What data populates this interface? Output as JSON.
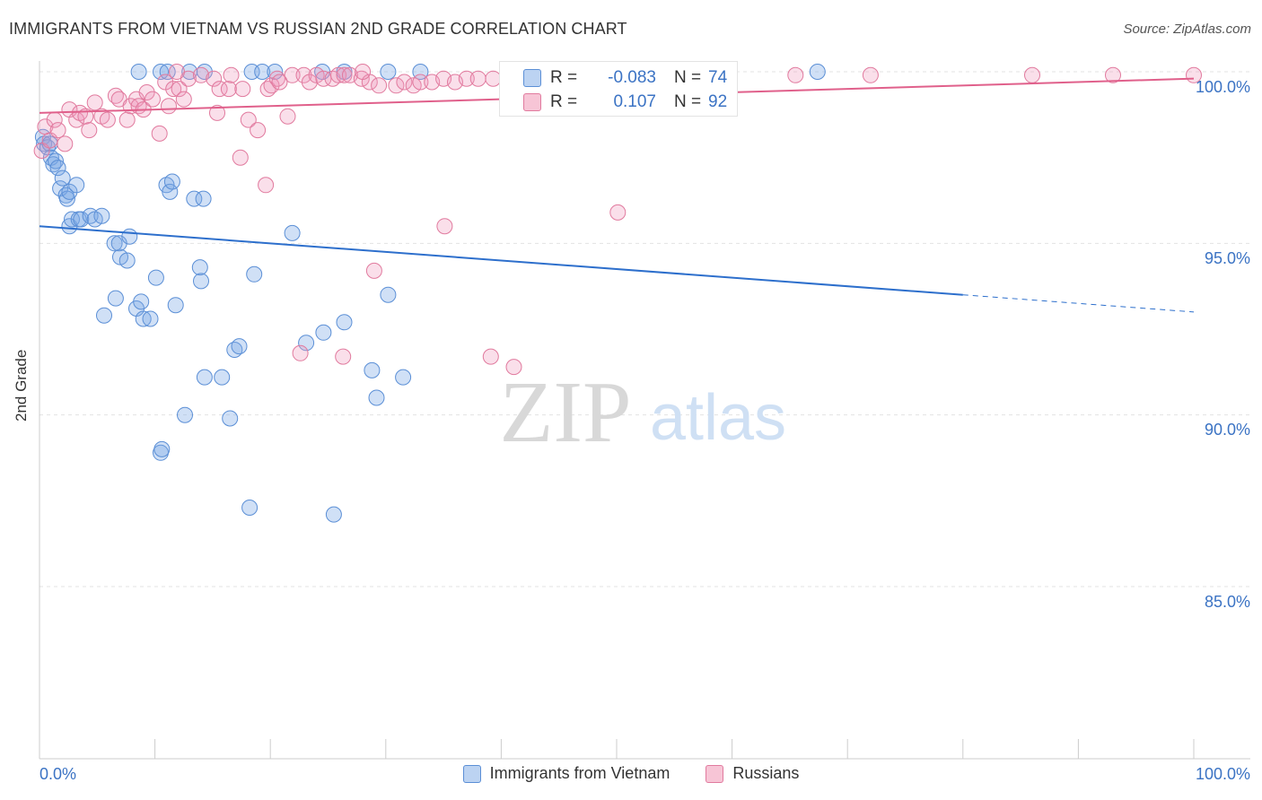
{
  "header": {
    "title": "IMMIGRANTS FROM VIETNAM VS RUSSIAN 2ND GRADE CORRELATION CHART",
    "source": "Source: ZipAtlas.com"
  },
  "watermark": {
    "zip": "ZIP",
    "atlas": "atlas"
  },
  "stats": [
    {
      "r_label": "R =",
      "r_value": "-0.083",
      "n_label": "N =",
      "n_value": "74",
      "color": "#5b8fd6",
      "fill": "#bcd3f2"
    },
    {
      "r_label": "R =",
      "r_value": "0.107",
      "n_label": "N =",
      "n_value": "92",
      "color": "#e17a9e",
      "fill": "#f7c5d6"
    }
  ],
  "legend": [
    {
      "label": "Immigrants from Vietnam",
      "color": "#5b8fd6",
      "fill": "#bcd3f2"
    },
    {
      "label": "Russians",
      "color": "#e17a9e",
      "fill": "#f7c5d6"
    }
  ],
  "colors": {
    "value_text": "#3b73c4",
    "blue_line": "#2d6fcc",
    "pink_line": "#e0608b",
    "grid": "#e3e3e3",
    "axis": "#cccccc"
  },
  "chart_data": {
    "type": "scatter",
    "title": "IMMIGRANTS FROM VIETNAM VS RUSSIAN 2ND GRADE CORRELATION CHART",
    "xlabel": "",
    "ylabel": "2nd Grade",
    "xlim": [
      0,
      100
    ],
    "ylim": [
      80.5,
      100.5
    ],
    "x_tick_labels": [
      "0.0%",
      "100.0%"
    ],
    "y_ticks": [
      85,
      90,
      95,
      100
    ],
    "y_tick_labels": [
      "85.0%",
      "90.0%",
      "95.0%",
      "100.0%"
    ],
    "grid": true,
    "legend_position": "bottom",
    "series": [
      {
        "name": "Immigrants from Vietnam",
        "color": "#5b8fd6",
        "trend": {
          "x0": 0,
          "y0": 95.5,
          "x1": 80,
          "y1": 93.5,
          "dashed_to_x": 100,
          "dashed_to_y": 93.0
        },
        "points": [
          [
            0.3,
            98.1
          ],
          [
            0.4,
            97.9
          ],
          [
            0.7,
            97.8
          ],
          [
            0.9,
            97.9
          ],
          [
            1.0,
            97.5
          ],
          [
            1.2,
            97.3
          ],
          [
            1.4,
            97.4
          ],
          [
            1.6,
            97.2
          ],
          [
            1.8,
            96.6
          ],
          [
            2.0,
            96.9
          ],
          [
            2.3,
            96.4
          ],
          [
            2.4,
            96.3
          ],
          [
            2.6,
            96.5
          ],
          [
            3.2,
            96.7
          ],
          [
            2.6,
            95.5
          ],
          [
            2.8,
            95.7
          ],
          [
            3.4,
            95.7
          ],
          [
            3.6,
            95.7
          ],
          [
            4.4,
            95.8
          ],
          [
            4.8,
            95.7
          ],
          [
            5.4,
            95.8
          ],
          [
            6.5,
            95.0
          ],
          [
            7.0,
            94.6
          ],
          [
            6.9,
            95.0
          ],
          [
            7.6,
            94.5
          ],
          [
            7.8,
            95.2
          ],
          [
            6.6,
            93.4
          ],
          [
            8.4,
            93.1
          ],
          [
            9.0,
            92.8
          ],
          [
            9.6,
            92.8
          ],
          [
            5.6,
            92.9
          ],
          [
            10.1,
            94.0
          ],
          [
            11.0,
            96.7
          ],
          [
            11.3,
            96.5
          ],
          [
            11.5,
            96.8
          ],
          [
            13.4,
            96.3
          ],
          [
            14.2,
            96.3
          ],
          [
            11.8,
            93.2
          ],
          [
            13.9,
            94.3
          ],
          [
            14.0,
            93.9
          ],
          [
            14.3,
            91.1
          ],
          [
            15.8,
            91.1
          ],
          [
            16.9,
            91.9
          ],
          [
            17.3,
            92.0
          ],
          [
            18.6,
            94.1
          ],
          [
            21.9,
            95.3
          ],
          [
            23.1,
            92.1
          ],
          [
            24.6,
            92.4
          ],
          [
            26.4,
            92.7
          ],
          [
            30.2,
            93.5
          ],
          [
            28.8,
            91.3
          ],
          [
            29.2,
            90.5
          ],
          [
            31.5,
            91.1
          ],
          [
            12.6,
            90.0
          ],
          [
            16.5,
            89.9
          ],
          [
            10.5,
            88.9
          ],
          [
            10.6,
            89.0
          ],
          [
            18.2,
            87.3
          ],
          [
            25.5,
            87.1
          ],
          [
            8.8,
            93.3
          ],
          [
            8.6,
            100.0
          ],
          [
            10.5,
            100.0
          ],
          [
            11.1,
            100.0
          ],
          [
            13.0,
            100.0
          ],
          [
            14.3,
            100.0
          ],
          [
            18.4,
            100.0
          ],
          [
            19.3,
            100.0
          ],
          [
            20.4,
            100.0
          ],
          [
            24.5,
            100.0
          ],
          [
            26.4,
            100.0
          ],
          [
            30.2,
            100.0
          ],
          [
            33.0,
            100.0
          ],
          [
            43.1,
            100.0
          ],
          [
            67.4,
            100.0
          ]
        ]
      },
      {
        "name": "Russians",
        "color": "#e17a9e",
        "trend": {
          "x0": 0,
          "y0": 98.8,
          "x1": 100,
          "y1": 99.8
        },
        "points": [
          [
            0.2,
            97.7
          ],
          [
            0.5,
            98.4
          ],
          [
            0.9,
            98.0
          ],
          [
            1.3,
            98.6
          ],
          [
            1.6,
            98.3
          ],
          [
            2.2,
            97.9
          ],
          [
            2.6,
            98.9
          ],
          [
            3.2,
            98.6
          ],
          [
            3.5,
            98.8
          ],
          [
            4.0,
            98.7
          ],
          [
            4.3,
            98.3
          ],
          [
            4.8,
            99.1
          ],
          [
            5.4,
            98.7
          ],
          [
            5.9,
            98.6
          ],
          [
            6.6,
            99.3
          ],
          [
            6.9,
            99.2
          ],
          [
            7.6,
            98.6
          ],
          [
            7.9,
            99.0
          ],
          [
            8.4,
            99.2
          ],
          [
            8.6,
            99.0
          ],
          [
            9.0,
            98.9
          ],
          [
            9.3,
            99.4
          ],
          [
            9.8,
            99.2
          ],
          [
            10.4,
            98.2
          ],
          [
            10.9,
            99.7
          ],
          [
            11.2,
            99.0
          ],
          [
            11.6,
            99.5
          ],
          [
            12.1,
            99.5
          ],
          [
            12.5,
            99.2
          ],
          [
            12.9,
            99.8
          ],
          [
            14.0,
            99.9
          ],
          [
            15.1,
            99.8
          ],
          [
            15.4,
            98.8
          ],
          [
            15.6,
            99.5
          ],
          [
            16.4,
            99.5
          ],
          [
            16.6,
            99.9
          ],
          [
            17.6,
            99.5
          ],
          [
            18.1,
            98.6
          ],
          [
            18.9,
            98.3
          ],
          [
            19.8,
            99.5
          ],
          [
            20.1,
            99.6
          ],
          [
            20.6,
            99.8
          ],
          [
            21.5,
            98.7
          ],
          [
            21.9,
            99.9
          ],
          [
            22.9,
            99.9
          ],
          [
            23.4,
            99.7
          ],
          [
            24.0,
            99.9
          ],
          [
            24.6,
            99.8
          ],
          [
            25.4,
            99.8
          ],
          [
            25.9,
            99.9
          ],
          [
            26.4,
            99.9
          ],
          [
            26.9,
            99.9
          ],
          [
            27.9,
            99.8
          ],
          [
            28.6,
            99.7
          ],
          [
            29.4,
            99.6
          ],
          [
            30.9,
            99.6
          ],
          [
            31.6,
            99.7
          ],
          [
            32.4,
            99.6
          ],
          [
            33.0,
            99.7
          ],
          [
            34.0,
            99.7
          ],
          [
            35.0,
            99.8
          ],
          [
            36.0,
            99.7
          ],
          [
            37.0,
            99.8
          ],
          [
            38.0,
            99.8
          ],
          [
            39.3,
            99.8
          ],
          [
            40.8,
            99.9
          ],
          [
            42.0,
            99.8
          ],
          [
            44.0,
            99.9
          ],
          [
            46.2,
            99.9
          ],
          [
            48.0,
            99.8
          ],
          [
            50.0,
            99.9
          ],
          [
            52.5,
            99.9
          ],
          [
            56.0,
            99.9
          ],
          [
            59.0,
            99.9
          ],
          [
            65.5,
            99.9
          ],
          [
            72.0,
            99.9
          ],
          [
            86.0,
            99.9
          ],
          [
            93.0,
            99.9
          ],
          [
            100.0,
            99.9
          ],
          [
            20.8,
            99.7
          ],
          [
            17.4,
            97.5
          ],
          [
            19.6,
            96.7
          ],
          [
            29.0,
            94.2
          ],
          [
            35.1,
            95.5
          ],
          [
            50.1,
            95.9
          ],
          [
            22.6,
            91.8
          ],
          [
            26.3,
            91.7
          ],
          [
            39.1,
            91.7
          ],
          [
            41.1,
            91.4
          ],
          [
            11.9,
            100.0
          ],
          [
            28.0,
            100.0
          ],
          [
            58.1,
            100.0
          ]
        ]
      }
    ]
  }
}
